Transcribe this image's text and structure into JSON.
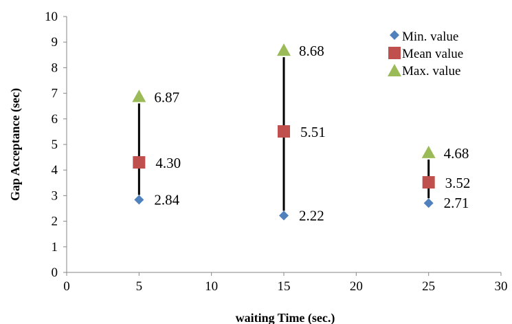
{
  "chart_data": {
    "type": "scatter",
    "xlabel": "waiting Time (sec.)",
    "ylabel": "Gap Acceptance (sec)",
    "xlim": [
      0,
      30
    ],
    "ylim": [
      0,
      10
    ],
    "x_ticks": [
      "0",
      "5",
      "10",
      "15",
      "20",
      "25",
      "30"
    ],
    "y_ticks": [
      "0",
      "1",
      "2",
      "3",
      "4",
      "5",
      "6",
      "7",
      "8",
      "9",
      "10"
    ],
    "grid": false,
    "legend_position": "top-right",
    "x": [
      5,
      15,
      25
    ],
    "series": [
      {
        "name": "Min. value",
        "marker": "diamond",
        "color": "#4F81BD",
        "values": [
          2.84,
          2.22,
          2.71
        ],
        "labels": [
          "2.84",
          "2.22",
          "2.71"
        ]
      },
      {
        "name": "Mean value",
        "marker": "square",
        "color": "#C0504D",
        "values": [
          4.3,
          5.51,
          3.52
        ],
        "labels": [
          "4.30",
          "5.51",
          "3.52"
        ]
      },
      {
        "name": "Max. value",
        "marker": "triangle",
        "color": "#9BBB59",
        "values": [
          6.87,
          8.68,
          4.68
        ],
        "labels": [
          "6.87",
          "8.68",
          "4.68"
        ]
      }
    ],
    "range_lines": true
  }
}
